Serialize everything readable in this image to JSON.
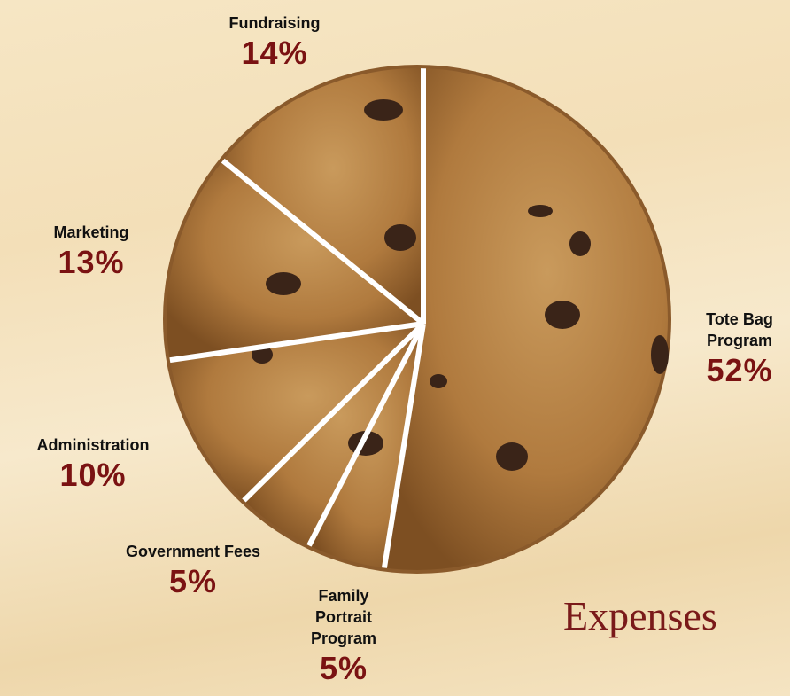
{
  "chart_data": {
    "type": "pie",
    "title": "Expenses",
    "categories": [
      "Tote Bag Program",
      "Family Portrait Program",
      "Government Fees",
      "Administration",
      "Marketing",
      "Fundraising"
    ],
    "values": [
      52,
      5,
      5,
      10,
      13,
      14
    ],
    "value_labels": [
      "52%",
      "5%",
      "5%",
      "10%",
      "13%",
      "14%"
    ],
    "color": "#b07a3e"
  }
}
